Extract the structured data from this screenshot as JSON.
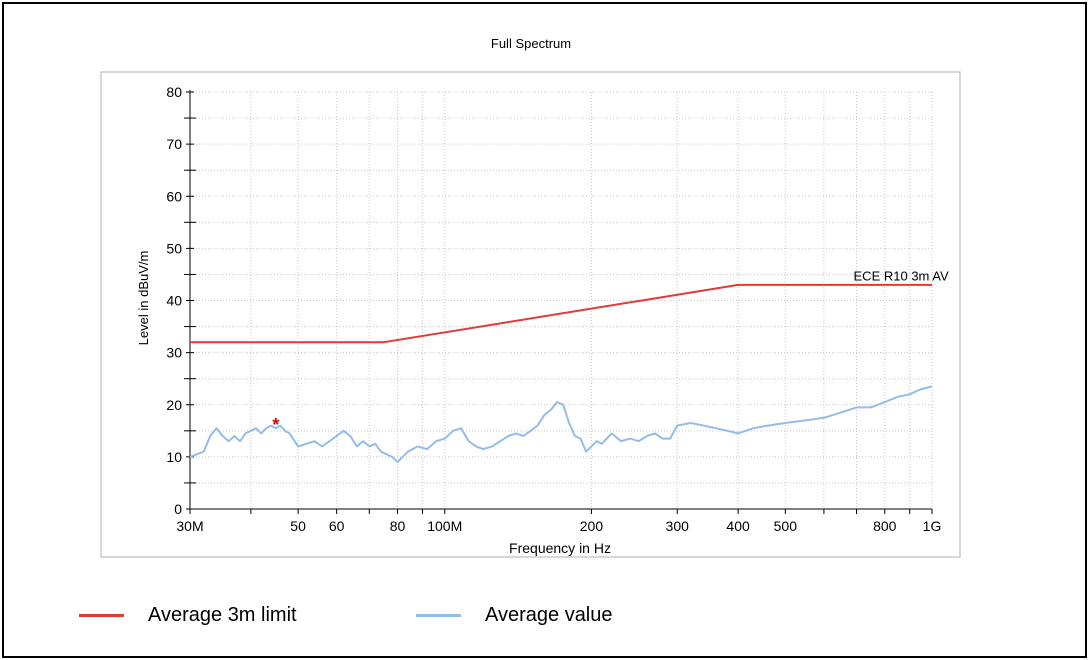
{
  "chart_data": {
    "type": "line",
    "title": "Full Spectrum",
    "xlabel": "Frequency in Hz",
    "ylabel": "Level in dBuV/m",
    "x_scale": "log",
    "xlim": [
      30000000,
      1000000000
    ],
    "ylim": [
      0,
      80
    ],
    "grid": true,
    "x_tick_values": [
      30000000,
      50000000,
      60000000,
      80000000,
      100000000,
      200000000,
      300000000,
      400000000,
      500000000,
      800000000,
      1000000000
    ],
    "x_tick_labels": [
      "30M",
      "50",
      "60",
      "80",
      "100M",
      "200",
      "300",
      "400",
      "500",
      "800",
      "1G"
    ],
    "y_ticks": [
      0,
      10,
      20,
      30,
      40,
      50,
      60,
      70,
      80
    ],
    "annotations": [
      {
        "text": "ECE R10 3m AV",
        "x": 700000000,
        "y": 43.5
      }
    ],
    "markers": [
      {
        "symbol": "*",
        "x": 45000000,
        "y": 16.5,
        "color": "#e60000"
      }
    ],
    "series": [
      {
        "name": "Average 3m limit",
        "color": "#e53935",
        "x": [
          30000000,
          75000000,
          400000000,
          1000000000
        ],
        "y": [
          32,
          32,
          43,
          43
        ]
      },
      {
        "name": "Average value",
        "color": "#93bde8",
        "x": [
          30000000,
          31000000,
          32000000,
          33000000,
          34000000,
          35000000,
          36000000,
          37000000,
          38000000,
          39000000,
          40000000,
          41000000,
          42000000,
          43000000,
          44000000,
          45000000,
          46000000,
          47000000,
          48000000,
          50000000,
          52000000,
          54000000,
          56000000,
          58000000,
          60000000,
          62000000,
          64000000,
          66000000,
          68000000,
          70000000,
          72000000,
          74000000,
          76000000,
          78000000,
          80000000,
          84000000,
          88000000,
          92000000,
          96000000,
          100000000,
          104000000,
          108000000,
          112000000,
          116000000,
          120000000,
          125000000,
          130000000,
          135000000,
          140000000,
          145000000,
          150000000,
          155000000,
          160000000,
          165000000,
          170000000,
          175000000,
          180000000,
          185000000,
          190000000,
          195000000,
          200000000,
          205000000,
          210000000,
          220000000,
          230000000,
          240000000,
          250000000,
          260000000,
          270000000,
          280000000,
          290000000,
          300000000,
          320000000,
          340000000,
          360000000,
          380000000,
          400000000,
          430000000,
          460000000,
          500000000,
          550000000,
          600000000,
          650000000,
          700000000,
          750000000,
          800000000,
          850000000,
          900000000,
          950000000,
          1000000000
        ],
        "y": [
          10,
          10.5,
          11,
          14,
          15.5,
          14,
          13,
          14,
          13,
          14.5,
          15,
          15.5,
          14.5,
          15.5,
          16,
          15.5,
          16,
          15,
          14.5,
          12,
          12.5,
          13,
          12,
          13,
          14,
          15,
          14,
          12,
          13,
          12,
          12.5,
          11,
          10.5,
          10,
          9,
          11,
          12,
          11.5,
          13,
          13.5,
          15,
          15.5,
          13,
          12,
          11.5,
          12,
          13,
          14,
          14.5,
          14,
          15,
          16,
          18,
          19,
          20.5,
          20,
          16.5,
          14,
          13.5,
          11,
          12,
          13,
          12.5,
          14.5,
          13,
          13.5,
          13,
          14,
          14.5,
          13.5,
          13.5,
          16,
          16.5,
          16,
          15.5,
          15,
          14.5,
          15.5,
          16,
          16.5,
          17,
          17.5,
          18.5,
          19.5,
          19.5,
          20.5,
          21.5,
          22,
          23,
          23.5
        ]
      }
    ],
    "legend": {
      "placement": "bottom",
      "items": [
        {
          "label": "Average 3m limit",
          "color": "#e53935"
        },
        {
          "label": "Average value",
          "color": "#93bde8"
        }
      ]
    }
  }
}
